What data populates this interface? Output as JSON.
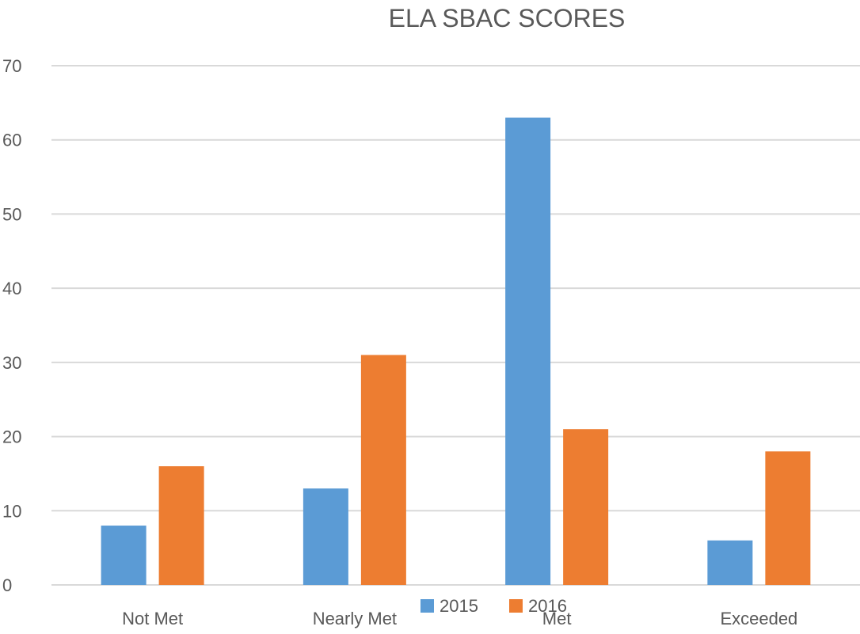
{
  "chart_data": {
    "type": "bar",
    "title": "ELA SBAC SCORES",
    "categories": [
      "Not Met",
      "Nearly Met",
      "Met",
      "Exceeded"
    ],
    "series": [
      {
        "name": "2015",
        "values": [
          8,
          13,
          63,
          6
        ],
        "color": "#5B9BD5"
      },
      {
        "name": "2016",
        "values": [
          16,
          31,
          21,
          18
        ],
        "color": "#ED7D31"
      }
    ],
    "ylim": [
      0,
      70
    ],
    "yticks": [
      0,
      10,
      20,
      30,
      40,
      50,
      60,
      70
    ],
    "grid": true,
    "legend_position": "bottom"
  }
}
